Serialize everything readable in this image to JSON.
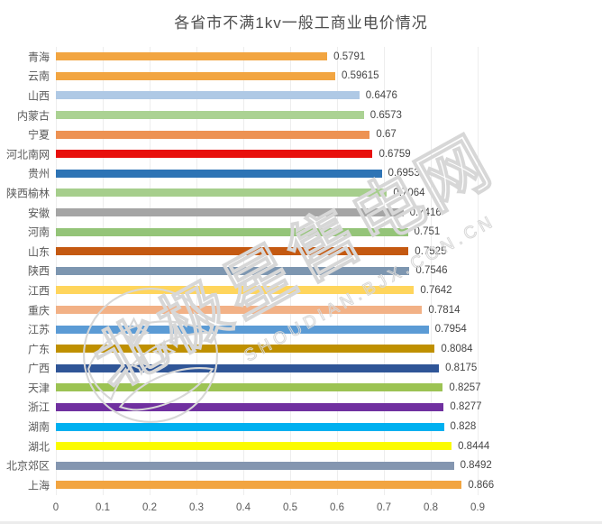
{
  "title": "各省市不满1kv一般工商业电价情况",
  "watermark": {
    "cn": "北极星售电网",
    "en": "SHOUDIAN.BJX.CON.CN"
  },
  "styles": {
    "background": "#ffffff",
    "title-color": "#4d4d4d",
    "label-color": "#595959",
    "value-color": "#454545",
    "grid-color": "#ededed",
    "watermark-color": "#d7d7d7"
  },
  "chart_data": {
    "type": "bar",
    "orientation": "horizontal",
    "title": "各省市不满1kv一般工商业电价情况",
    "categories": [
      "青海",
      "云南",
      "山西",
      "内蒙古",
      "宁夏",
      "河北南网",
      "贵州",
      "陕西榆林",
      "安徽",
      "河南",
      "山东",
      "陕西",
      "江西",
      "重庆",
      "江苏",
      "广东",
      "广西",
      "天津",
      "浙江",
      "湖南",
      "湖北",
      "北京郊区",
      "上海"
    ],
    "values": [
      0.5791,
      0.59615,
      0.6476,
      0.6573,
      0.67,
      0.6759,
      0.6953,
      0.7064,
      0.7416,
      0.751,
      0.7525,
      0.7546,
      0.7642,
      0.7814,
      0.7954,
      0.8084,
      0.8175,
      0.8257,
      0.8277,
      0.828,
      0.8444,
      0.8492,
      0.866
    ],
    "value_labels": [
      "0.5791",
      "0.59615",
      "0.6476",
      "0.6573",
      "0.67",
      "0.6759",
      "0.6953",
      "0.7064",
      "0.7416",
      "0.751",
      "0.7525",
      "0.7546",
      "0.7642",
      "0.7814",
      "0.7954",
      "0.8084",
      "0.8175",
      "0.8257",
      "0.8277",
      "0.828",
      "0.8444",
      "0.8492",
      "0.866"
    ],
    "bar_colors": [
      "#F2A541",
      "#F2A541",
      "#AFC9E5",
      "#ABD293",
      "#ED9253",
      "#E8100C",
      "#2E74B5",
      "#A6CE8C",
      "#A5A5A5",
      "#94C478",
      "#C45911",
      "#7D96B0",
      "#FFD55C",
      "#F2B186",
      "#5B9BD5",
      "#BF9000",
      "#2F5597",
      "#9CC353",
      "#7030A0",
      "#00B0F0",
      "#FBFB00",
      "#8496B0",
      "#F2A541"
    ],
    "xlim": [
      0,
      0.9
    ],
    "xticks": [
      0,
      0.1,
      0.2,
      0.3,
      0.4,
      0.5,
      0.6,
      0.7,
      0.8,
      0.9
    ],
    "xtick_labels": [
      "0",
      "0.1",
      "0.2",
      "0.3",
      "0.4",
      "0.5",
      "0.6",
      "0.7",
      "0.8",
      "0.9"
    ],
    "grid": true,
    "legend": false,
    "xlabel": "",
    "ylabel": ""
  }
}
